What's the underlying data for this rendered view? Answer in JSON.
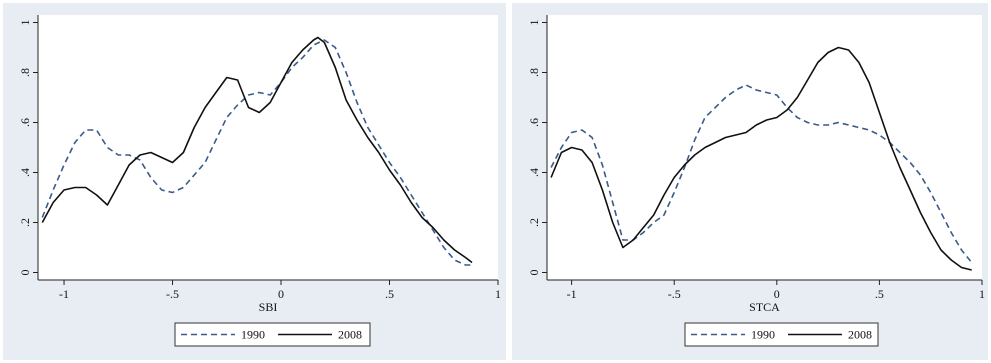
{
  "chart_data": [
    {
      "type": "line",
      "xlabel": "SBI",
      "ylabel": "",
      "xlim": [
        -1.12,
        1.0
      ],
      "ylim": [
        -0.03,
        1.03
      ],
      "xticks": [
        -1,
        -0.5,
        0,
        0.5,
        1
      ],
      "xtick_labels": [
        "-1",
        "-.5",
        "0",
        ".5",
        "1"
      ],
      "yticks": [
        0,
        0.2,
        0.4,
        0.6,
        0.8,
        1
      ],
      "ytick_labels": [
        "0",
        ".2",
        ".4",
        ".6",
        ".8",
        "1"
      ],
      "grid": false,
      "legend_position": "bottom",
      "series": [
        {
          "name": "1990",
          "color": "#3a5a8c",
          "dash": "dashed",
          "x": [
            -1.1,
            -1.05,
            -1.0,
            -0.95,
            -0.9,
            -0.85,
            -0.8,
            -0.75,
            -0.7,
            -0.65,
            -0.6,
            -0.55,
            -0.5,
            -0.45,
            -0.4,
            -0.35,
            -0.3,
            -0.25,
            -0.2,
            -0.15,
            -0.1,
            -0.05,
            0.0,
            0.05,
            0.1,
            0.15,
            0.2,
            0.25,
            0.3,
            0.35,
            0.4,
            0.45,
            0.5,
            0.55,
            0.6,
            0.65,
            0.7,
            0.75,
            0.8,
            0.85,
            0.88
          ],
          "y": [
            0.22,
            0.33,
            0.43,
            0.52,
            0.57,
            0.57,
            0.5,
            0.47,
            0.47,
            0.45,
            0.38,
            0.33,
            0.32,
            0.34,
            0.39,
            0.44,
            0.53,
            0.62,
            0.67,
            0.71,
            0.72,
            0.71,
            0.76,
            0.82,
            0.86,
            0.91,
            0.93,
            0.9,
            0.8,
            0.68,
            0.58,
            0.51,
            0.44,
            0.38,
            0.31,
            0.24,
            0.17,
            0.1,
            0.05,
            0.03,
            0.03
          ]
        },
        {
          "name": "2008",
          "color": "#111111",
          "dash": "solid",
          "x": [
            -1.1,
            -1.05,
            -1.0,
            -0.95,
            -0.9,
            -0.85,
            -0.8,
            -0.75,
            -0.7,
            -0.65,
            -0.6,
            -0.55,
            -0.5,
            -0.45,
            -0.4,
            -0.35,
            -0.3,
            -0.25,
            -0.2,
            -0.15,
            -0.1,
            -0.05,
            0.0,
            0.05,
            0.1,
            0.15,
            0.17,
            0.2,
            0.25,
            0.3,
            0.35,
            0.4,
            0.45,
            0.5,
            0.55,
            0.6,
            0.65,
            0.7,
            0.75,
            0.8,
            0.85,
            0.88
          ],
          "y": [
            0.2,
            0.28,
            0.33,
            0.34,
            0.34,
            0.31,
            0.27,
            0.35,
            0.43,
            0.47,
            0.48,
            0.46,
            0.44,
            0.48,
            0.58,
            0.66,
            0.72,
            0.78,
            0.77,
            0.66,
            0.64,
            0.68,
            0.76,
            0.84,
            0.89,
            0.93,
            0.94,
            0.92,
            0.82,
            0.69,
            0.61,
            0.54,
            0.48,
            0.41,
            0.35,
            0.28,
            0.22,
            0.18,
            0.13,
            0.09,
            0.06,
            0.04
          ]
        }
      ]
    },
    {
      "type": "line",
      "xlabel": "STCA",
      "ylabel": "",
      "xlim": [
        -1.12,
        1.0
      ],
      "ylim": [
        -0.03,
        1.03
      ],
      "xticks": [
        -1,
        -0.5,
        0,
        0.5,
        1
      ],
      "xtick_labels": [
        "-1",
        "-.5",
        "0",
        ".5",
        "1"
      ],
      "yticks": [
        0,
        0.2,
        0.4,
        0.6,
        0.8,
        1
      ],
      "ytick_labels": [
        "0",
        ".2",
        ".4",
        ".6",
        ".8",
        "1"
      ],
      "grid": false,
      "legend_position": "bottom",
      "series": [
        {
          "name": "1990",
          "color": "#3a5a8c",
          "dash": "dashed",
          "x": [
            -1.1,
            -1.05,
            -1.0,
            -0.95,
            -0.9,
            -0.85,
            -0.8,
            -0.75,
            -0.7,
            -0.65,
            -0.6,
            -0.55,
            -0.5,
            -0.45,
            -0.4,
            -0.35,
            -0.3,
            -0.25,
            -0.2,
            -0.15,
            -0.1,
            -0.05,
            0.0,
            0.05,
            0.1,
            0.15,
            0.2,
            0.25,
            0.3,
            0.35,
            0.4,
            0.45,
            0.5,
            0.55,
            0.6,
            0.65,
            0.7,
            0.75,
            0.8,
            0.85,
            0.9,
            0.95
          ],
          "y": [
            0.42,
            0.5,
            0.56,
            0.57,
            0.54,
            0.43,
            0.28,
            0.13,
            0.13,
            0.16,
            0.2,
            0.23,
            0.32,
            0.42,
            0.53,
            0.62,
            0.66,
            0.7,
            0.73,
            0.75,
            0.73,
            0.72,
            0.71,
            0.66,
            0.62,
            0.6,
            0.59,
            0.59,
            0.6,
            0.59,
            0.58,
            0.57,
            0.55,
            0.52,
            0.48,
            0.44,
            0.39,
            0.32,
            0.24,
            0.16,
            0.09,
            0.04
          ]
        },
        {
          "name": "2008",
          "color": "#111111",
          "dash": "solid",
          "x": [
            -1.1,
            -1.05,
            -1.0,
            -0.95,
            -0.9,
            -0.85,
            -0.8,
            -0.75,
            -0.7,
            -0.65,
            -0.6,
            -0.55,
            -0.5,
            -0.45,
            -0.4,
            -0.35,
            -0.3,
            -0.25,
            -0.2,
            -0.15,
            -0.1,
            -0.05,
            0.0,
            0.05,
            0.1,
            0.15,
            0.2,
            0.25,
            0.3,
            0.35,
            0.4,
            0.45,
            0.5,
            0.55,
            0.6,
            0.65,
            0.7,
            0.75,
            0.8,
            0.85,
            0.9,
            0.95
          ],
          "y": [
            0.38,
            0.48,
            0.5,
            0.49,
            0.44,
            0.33,
            0.2,
            0.1,
            0.13,
            0.18,
            0.23,
            0.31,
            0.38,
            0.43,
            0.47,
            0.5,
            0.52,
            0.54,
            0.55,
            0.56,
            0.59,
            0.61,
            0.62,
            0.65,
            0.7,
            0.77,
            0.84,
            0.88,
            0.9,
            0.89,
            0.84,
            0.76,
            0.64,
            0.52,
            0.42,
            0.33,
            0.24,
            0.16,
            0.09,
            0.05,
            0.02,
            0.01
          ]
        }
      ]
    }
  ]
}
